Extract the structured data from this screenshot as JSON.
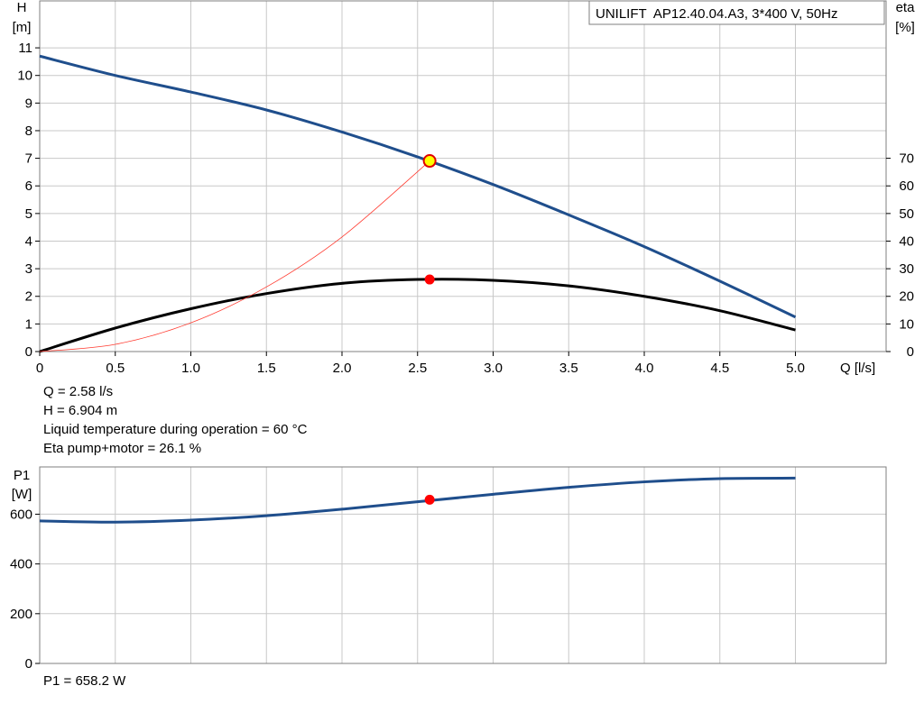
{
  "title": "UNILIFT  AP12.40.04.A3, 3*400 V, 50Hz",
  "operating_point": {
    "lines": [
      "Q = 2.58 l/s",
      "H = 6.904 m",
      "Liquid temperature during operation = 60 °C",
      "Eta pump+motor = 26.1 %"
    ],
    "p1_line": "P1 = 658.2 W",
    "q": 2.58,
    "h": 6.904,
    "eta": 26.1,
    "p1": 658.2
  },
  "colors": {
    "head_curve": "#1f4e8c",
    "eta_curve": "#000000",
    "system_curve": "#ff3b30",
    "power_curve": "#1f4e8c",
    "duty_point_fill": "#ffff00",
    "duty_point_stroke": "#e00000",
    "marker": "#ff0000",
    "grid": "#c8c8c8"
  },
  "chart_data": [
    {
      "type": "line",
      "xlabel": "Q [l/s]",
      "ylabel_left": [
        "H",
        "[m]"
      ],
      "ylabel_right": [
        "eta",
        "[%]"
      ],
      "xlim": [
        0,
        5.6
      ],
      "ylim_left": [
        0,
        12.7
      ],
      "ylim_right": [
        0,
        127
      ],
      "x_ticks": [
        "0",
        "0.5",
        "1.0",
        "1.5",
        "2.0",
        "2.5",
        "3.0",
        "3.5",
        "4.0",
        "4.5",
        "5.0"
      ],
      "x_tick_values": [
        0,
        0.5,
        1.0,
        1.5,
        2.0,
        2.5,
        3.0,
        3.5,
        4.0,
        4.5,
        5.0
      ],
      "y_left_ticks": [
        0,
        1,
        2,
        3,
        4,
        5,
        6,
        7,
        8,
        9,
        10,
        11
      ],
      "y_right_ticks": [
        0,
        10,
        20,
        30,
        40,
        50,
        60,
        70
      ],
      "grid": true,
      "series": [
        {
          "axis": "left",
          "style": "head",
          "x": [
            0,
            0.5,
            1.0,
            1.5,
            2.0,
            2.5,
            3.0,
            3.5,
            4.0,
            4.5,
            5.0
          ],
          "y": [
            10.7,
            10.0,
            9.4,
            8.75,
            7.95,
            7.05,
            6.05,
            4.95,
            3.8,
            2.55,
            1.25
          ]
        },
        {
          "axis": "right",
          "style": "eta",
          "x": [
            0,
            0.5,
            1.0,
            1.5,
            2.0,
            2.5,
            3.0,
            3.5,
            4.0,
            4.5,
            5.0
          ],
          "y": [
            0,
            8.5,
            15.5,
            21.0,
            24.7,
            26.1,
            25.8,
            23.8,
            20.0,
            14.8,
            7.8
          ]
        },
        {
          "axis": "left",
          "style": "system",
          "x": [
            0,
            0.5,
            1.0,
            1.5,
            2.0,
            2.58
          ],
          "y": [
            0,
            0.26,
            1.04,
            2.34,
            4.15,
            6.904
          ]
        }
      ],
      "markers": [
        {
          "axis": "left",
          "x": 2.58,
          "y": 6.904,
          "style": "duty"
        },
        {
          "axis": "right",
          "x": 2.58,
          "y": 26.1,
          "style": "dot"
        }
      ]
    },
    {
      "type": "line",
      "ylabel": [
        "P1",
        "[W]"
      ],
      "xlim": [
        0,
        5.6
      ],
      "ylim": [
        0,
        790
      ],
      "y_ticks": [
        0,
        200,
        400,
        600
      ],
      "x_tick_values": [
        0,
        0.5,
        1.0,
        1.5,
        2.0,
        2.5,
        3.0,
        3.5,
        4.0,
        4.5,
        5.0
      ],
      "grid": true,
      "series": [
        {
          "style": "power",
          "x": [
            0,
            0.5,
            1.0,
            1.5,
            2.0,
            2.5,
            3.0,
            3.5,
            4.0,
            4.5,
            5.0
          ],
          "y": [
            573,
            568,
            576,
            594,
            620,
            650,
            680,
            708,
            730,
            743,
            745
          ]
        }
      ],
      "markers": [
        {
          "x": 2.58,
          "y": 658.2,
          "style": "dot"
        }
      ]
    }
  ]
}
